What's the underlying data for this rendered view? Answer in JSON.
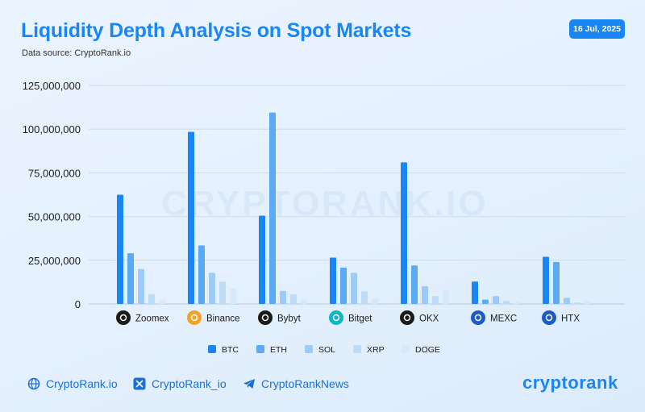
{
  "header": {
    "title": "Liquidity Depth Analysis on Spot Markets",
    "source": "Data source: CryptoRank.io",
    "date": "16 Jul, 2025"
  },
  "watermark": "CRYPTORANK.IO",
  "footer": {
    "site": "CryptoRank.io",
    "twitter": "CryptoRank_io",
    "telegram": "CryptoRankNews",
    "brand": "cryptorank"
  },
  "chart_data": {
    "type": "bar",
    "title": "Liquidity Depth Analysis on Spot Markets",
    "categories": [
      "Zoomex",
      "Binance",
      "Bybyt",
      "Bitget",
      "OKX",
      "MEXC",
      "HTX"
    ],
    "series": [
      {
        "name": "BTC",
        "color": "#1a86f3",
        "values": [
          62500000,
          98500000,
          50500000,
          26500000,
          81000000,
          12800000,
          27000000
        ]
      },
      {
        "name": "ETH",
        "color": "#5aaaf5",
        "values": [
          29000000,
          33500000,
          109500000,
          20800000,
          22000000,
          2500000,
          24000000
        ]
      },
      {
        "name": "SOL",
        "color": "#9ccbf7",
        "values": [
          20000000,
          17800000,
          7500000,
          17800000,
          10200000,
          4500000,
          3500000
        ]
      },
      {
        "name": "XRP",
        "color": "#bcdcf8",
        "values": [
          5500000,
          12800000,
          5500000,
          7200000,
          4500000,
          1800000,
          800000
        ]
      },
      {
        "name": "DOGE",
        "color": "#d6e9fb",
        "values": [
          2000000,
          9000000,
          2500000,
          3500000,
          8000000,
          1200000,
          1500000
        ]
      }
    ],
    "ylim": [
      0,
      125000000
    ],
    "yticks": [
      "0",
      "25,000,000",
      "50,000,000",
      "75,000,000",
      "100,000,000",
      "125,000,000"
    ],
    "xlabel": "",
    "ylabel": "",
    "legend_position": "bottom",
    "grid": true,
    "exchange_icons": [
      "infinity-icon",
      "binance-icon",
      "bybit-icon",
      "bitget-icon",
      "okx-icon",
      "mexc-icon",
      "htx-icon"
    ]
  }
}
